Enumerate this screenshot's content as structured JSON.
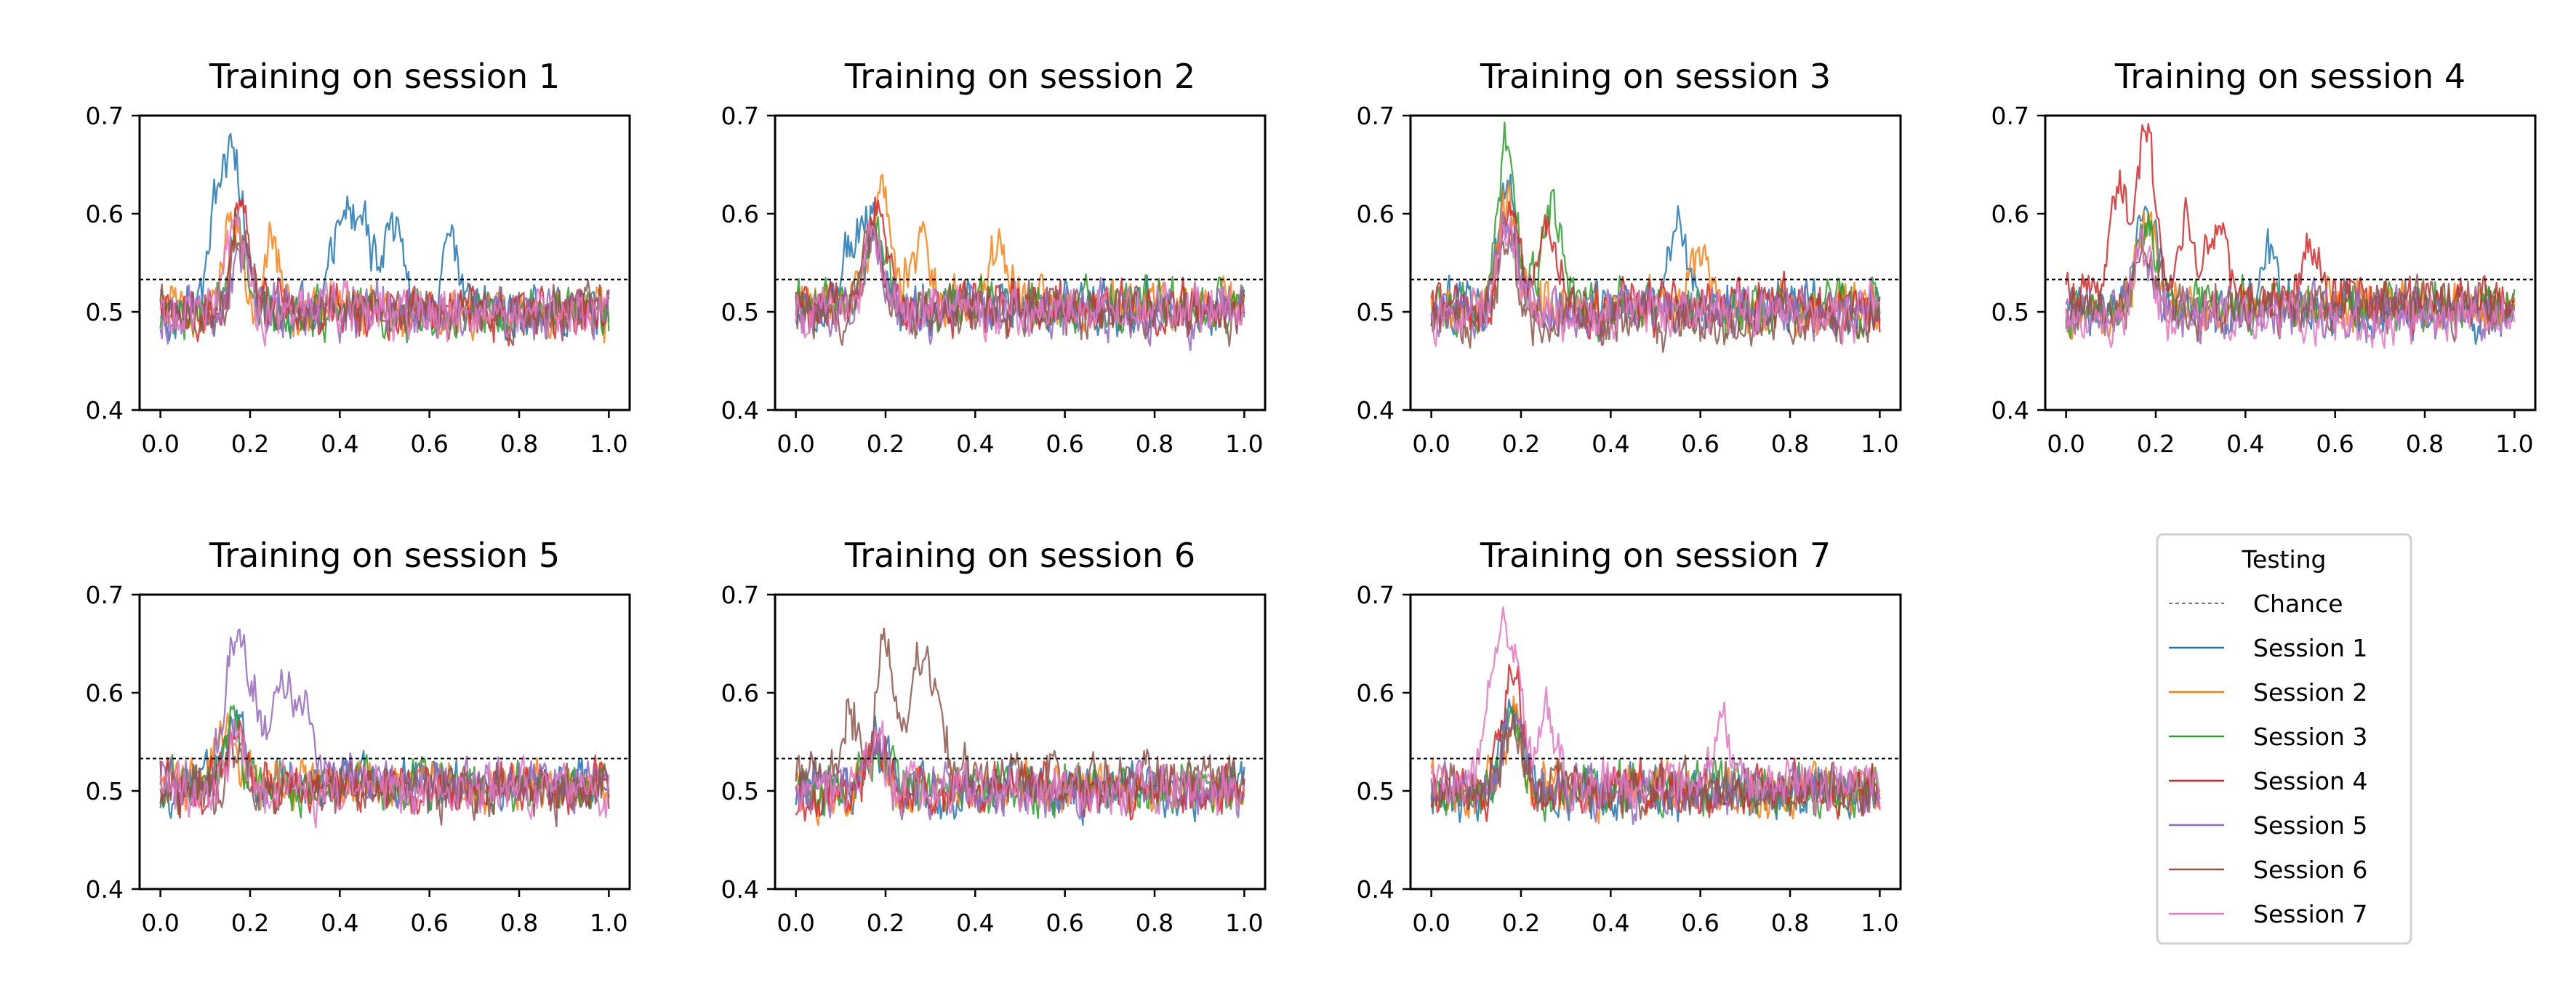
{
  "figure": {
    "legend": {
      "title": "Testing",
      "entries": [
        "Chance",
        "Session 1",
        "Session 2",
        "Session 3",
        "Session 4",
        "Session 5",
        "Session 6",
        "Session 7"
      ],
      "placement": "bottom-right (8th grid cell)"
    },
    "colors": {
      "Session 1": "#1f77b4",
      "Session 2": "#ff7f0e",
      "Session 3": "#2ca02c",
      "Session 4": "#d62728",
      "Session 5": "#9467bd",
      "Session 6": "#8c564b",
      "Session 7": "#e377c2",
      "Chance": "#000000"
    }
  },
  "chart_data": [
    {
      "type": "line",
      "title": "Training on session 1",
      "xlim": [
        0.0,
        1.0
      ],
      "ylim": [
        0.4,
        0.7
      ],
      "xticks": [
        "0.0",
        "0.2",
        "0.4",
        "0.6",
        "0.8",
        "1.0"
      ],
      "yticks": [
        "0.4",
        "0.5",
        "0.6",
        "0.7"
      ],
      "chance": 0.533,
      "grid": false,
      "series": [
        {
          "name": "Session 1",
          "baseline": 0.5,
          "peaks": [
            [
              0.17,
              0.635
            ],
            [
              0.13,
              0.61
            ],
            [
              0.45,
              0.6
            ],
            [
              0.4,
              0.595
            ],
            [
              0.52,
              0.585
            ],
            [
              0.65,
              0.565
            ]
          ]
        },
        {
          "name": "Session 2",
          "baseline": 0.5,
          "peaks": [
            [
              0.16,
              0.6
            ],
            [
              0.25,
              0.565
            ]
          ]
        },
        {
          "name": "Session 3",
          "baseline": 0.5,
          "peaks": [
            [
              0.17,
              0.585
            ]
          ]
        },
        {
          "name": "Session 4",
          "baseline": 0.5,
          "peaks": [
            [
              0.18,
              0.615
            ]
          ]
        },
        {
          "name": "Session 5",
          "baseline": 0.5,
          "peaks": [
            [
              0.18,
              0.56
            ]
          ]
        },
        {
          "name": "Session 6",
          "baseline": 0.5,
          "peaks": [
            [
              0.18,
              0.575
            ]
          ]
        },
        {
          "name": "Session 7",
          "baseline": 0.5,
          "peaks": [
            [
              0.17,
              0.59
            ]
          ]
        }
      ]
    },
    {
      "type": "line",
      "title": "Training on session 2",
      "xlim": [
        0.0,
        1.0
      ],
      "ylim": [
        0.4,
        0.7
      ],
      "xticks": [
        "0.0",
        "0.2",
        "0.4",
        "0.6",
        "0.8",
        "1.0"
      ],
      "yticks": [
        "0.4",
        "0.5",
        "0.6",
        "0.7"
      ],
      "chance": 0.533,
      "grid": false,
      "series": [
        {
          "name": "Session 1",
          "baseline": 0.505,
          "peaks": [
            [
              0.17,
              0.6
            ],
            [
              0.12,
              0.565
            ]
          ]
        },
        {
          "name": "Session 2",
          "baseline": 0.51,
          "peaks": [
            [
              0.19,
              0.63
            ],
            [
              0.28,
              0.575
            ],
            [
              0.45,
              0.565
            ]
          ]
        },
        {
          "name": "Session 3",
          "baseline": 0.505,
          "peaks": [
            [
              0.18,
              0.595
            ]
          ]
        },
        {
          "name": "Session 4",
          "baseline": 0.505,
          "peaks": [
            [
              0.18,
              0.61
            ]
          ]
        },
        {
          "name": "Session 5",
          "baseline": 0.5,
          "peaks": [
            [
              0.17,
              0.57
            ]
          ]
        },
        {
          "name": "Session 6",
          "baseline": 0.5,
          "peaks": [
            [
              0.17,
              0.585
            ]
          ]
        },
        {
          "name": "Session 7",
          "baseline": 0.5,
          "peaks": [
            [
              0.17,
              0.575
            ]
          ]
        }
      ]
    },
    {
      "type": "line",
      "title": "Training on session 3",
      "xlim": [
        0.0,
        1.0
      ],
      "ylim": [
        0.4,
        0.7
      ],
      "xticks": [
        "0.0",
        "0.2",
        "0.4",
        "0.6",
        "0.8",
        "1.0"
      ],
      "yticks": [
        "0.4",
        "0.5",
        "0.6",
        "0.7"
      ],
      "chance": 0.533,
      "grid": false,
      "series": [
        {
          "name": "Session 1",
          "baseline": 0.505,
          "peaks": [
            [
              0.17,
              0.62
            ],
            [
              0.55,
              0.585
            ]
          ]
        },
        {
          "name": "Session 2",
          "baseline": 0.505,
          "peaks": [
            [
              0.17,
              0.61
            ],
            [
              0.6,
              0.56
            ]
          ]
        },
        {
          "name": "Session 3",
          "baseline": 0.505,
          "peaks": [
            [
              0.17,
              0.672
            ],
            [
              0.27,
              0.615
            ]
          ]
        },
        {
          "name": "Session 4",
          "baseline": 0.505,
          "peaks": [
            [
              0.18,
              0.605
            ],
            [
              0.26,
              0.585
            ]
          ]
        },
        {
          "name": "Session 5",
          "baseline": 0.5,
          "peaks": [
            [
              0.17,
              0.59
            ]
          ]
        },
        {
          "name": "Session 6",
          "baseline": 0.49,
          "peaks": [
            [
              0.17,
              0.575
            ]
          ]
        },
        {
          "name": "Session 7",
          "baseline": 0.5,
          "peaks": [
            [
              0.17,
              0.585
            ]
          ]
        }
      ]
    },
    {
      "type": "line",
      "title": "Training on session 4",
      "xlim": [
        0.0,
        1.0
      ],
      "ylim": [
        0.4,
        0.7
      ],
      "xticks": [
        "0.0",
        "0.2",
        "0.4",
        "0.6",
        "0.8",
        "1.0"
      ],
      "yticks": [
        "0.4",
        "0.5",
        "0.6",
        "0.7"
      ],
      "chance": 0.533,
      "grid": false,
      "series": [
        {
          "name": "Session 1",
          "baseline": 0.5,
          "peaks": [
            [
              0.18,
              0.615
            ],
            [
              0.45,
              0.56
            ]
          ]
        },
        {
          "name": "Session 2",
          "baseline": 0.505,
          "peaks": [
            [
              0.18,
              0.6
            ]
          ]
        },
        {
          "name": "Session 3",
          "baseline": 0.505,
          "peaks": [
            [
              0.18,
              0.59
            ]
          ]
        },
        {
          "name": "Session 4",
          "baseline": 0.51,
          "peaks": [
            [
              0.18,
              0.675
            ],
            [
              0.12,
              0.615
            ],
            [
              0.27,
              0.6
            ],
            [
              0.34,
              0.585
            ],
            [
              0.55,
              0.575
            ]
          ]
        },
        {
          "name": "Session 5",
          "baseline": 0.5,
          "peaks": [
            [
              0.17,
              0.56
            ]
          ]
        },
        {
          "name": "Session 6",
          "baseline": 0.505,
          "peaks": [
            [
              0.18,
              0.565
            ]
          ]
        },
        {
          "name": "Session 7",
          "baseline": 0.495,
          "peaks": [
            [
              0.17,
              0.57
            ]
          ]
        }
      ]
    },
    {
      "type": "line",
      "title": "Training on session 5",
      "xlim": [
        0.0,
        1.0
      ],
      "ylim": [
        0.4,
        0.7
      ],
      "xticks": [
        "0.0",
        "0.2",
        "0.4",
        "0.6",
        "0.8",
        "1.0"
      ],
      "yticks": [
        "0.4",
        "0.5",
        "0.6",
        "0.7"
      ],
      "chance": 0.533,
      "grid": false,
      "series": [
        {
          "name": "Session 1",
          "baseline": 0.505,
          "peaks": [
            [
              0.17,
              0.575
            ]
          ]
        },
        {
          "name": "Session 2",
          "baseline": 0.505,
          "peaks": [
            [
              0.14,
              0.565
            ]
          ]
        },
        {
          "name": "Session 3",
          "baseline": 0.505,
          "peaks": [
            [
              0.16,
              0.57
            ]
          ]
        },
        {
          "name": "Session 4",
          "baseline": 0.505,
          "peaks": [
            [
              0.17,
              0.56
            ]
          ]
        },
        {
          "name": "Session 5",
          "baseline": 0.51,
          "peaks": [
            [
              0.16,
              0.632
            ],
            [
              0.27,
              0.61
            ],
            [
              0.2,
              0.6
            ],
            [
              0.32,
              0.58
            ]
          ]
        },
        {
          "name": "Session 6",
          "baseline": 0.5,
          "peaks": [
            [
              0.17,
              0.55
            ]
          ]
        },
        {
          "name": "Session 7",
          "baseline": 0.5,
          "peaks": [
            [
              0.17,
              0.56
            ]
          ]
        }
      ]
    },
    {
      "type": "line",
      "title": "Training on session 6",
      "xlim": [
        0.0,
        1.0
      ],
      "ylim": [
        0.4,
        0.7
      ],
      "xticks": [
        "0.0",
        "0.2",
        "0.4",
        "0.6",
        "0.8",
        "1.0"
      ],
      "yticks": [
        "0.4",
        "0.5",
        "0.6",
        "0.7"
      ],
      "chance": 0.533,
      "grid": false,
      "series": [
        {
          "name": "Session 1",
          "baseline": 0.5,
          "peaks": [
            [
              0.18,
              0.55
            ]
          ]
        },
        {
          "name": "Session 2",
          "baseline": 0.5,
          "peaks": [
            [
              0.18,
              0.545
            ]
          ]
        },
        {
          "name": "Session 3",
          "baseline": 0.5,
          "peaks": [
            [
              0.18,
              0.545
            ]
          ]
        },
        {
          "name": "Session 4",
          "baseline": 0.5,
          "peaks": [
            [
              0.18,
              0.55
            ]
          ]
        },
        {
          "name": "Session 5",
          "baseline": 0.5,
          "peaks": [
            [
              0.18,
              0.545
            ]
          ]
        },
        {
          "name": "Session 6",
          "baseline": 0.515,
          "peaks": [
            [
              0.2,
              0.645
            ],
            [
              0.27,
              0.615
            ],
            [
              0.12,
              0.58
            ],
            [
              0.31,
              0.59
            ]
          ]
        },
        {
          "name": "Session 7",
          "baseline": 0.5,
          "peaks": [
            [
              0.18,
              0.55
            ]
          ]
        }
      ]
    },
    {
      "type": "line",
      "title": "Training on session 7",
      "xlim": [
        0.0,
        1.0
      ],
      "ylim": [
        0.4,
        0.7
      ],
      "xticks": [
        "0.0",
        "0.2",
        "0.4",
        "0.6",
        "0.8",
        "1.0"
      ],
      "yticks": [
        "0.4",
        "0.5",
        "0.6",
        "0.7"
      ],
      "chance": 0.533,
      "grid": false,
      "series": [
        {
          "name": "Session 1",
          "baseline": 0.5,
          "peaks": [
            [
              0.18,
              0.585
            ]
          ]
        },
        {
          "name": "Session 2",
          "baseline": 0.5,
          "peaks": [
            [
              0.18,
              0.57
            ]
          ]
        },
        {
          "name": "Session 3",
          "baseline": 0.5,
          "peaks": [
            [
              0.18,
              0.575
            ]
          ]
        },
        {
          "name": "Session 4",
          "baseline": 0.5,
          "peaks": [
            [
              0.18,
              0.615
            ]
          ]
        },
        {
          "name": "Session 5",
          "baseline": 0.5,
          "peaks": [
            [
              0.18,
              0.565
            ]
          ]
        },
        {
          "name": "Session 6",
          "baseline": 0.5,
          "peaks": [
            [
              0.18,
              0.56
            ]
          ]
        },
        {
          "name": "Session 7",
          "baseline": 0.505,
          "peaks": [
            [
              0.18,
              0.64
            ],
            [
              0.14,
              0.6
            ],
            [
              0.26,
              0.585
            ],
            [
              0.65,
              0.565
            ]
          ]
        }
      ]
    }
  ]
}
